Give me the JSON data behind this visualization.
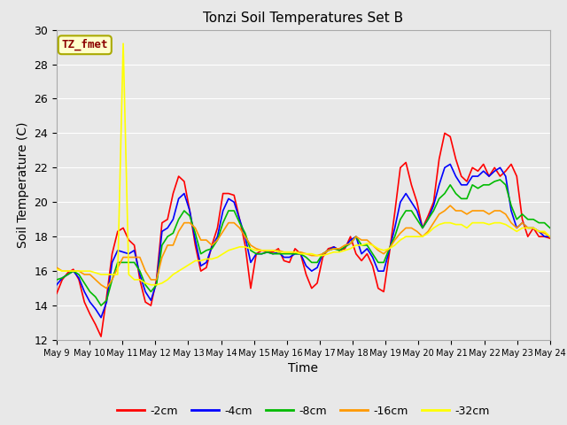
{
  "title": "Tonzi Soil Temperatures Set B",
  "xlabel": "Time",
  "ylabel": "Soil Temperature (C)",
  "ylim": [
    12,
    30
  ],
  "yticks": [
    12,
    14,
    16,
    18,
    20,
    22,
    24,
    26,
    28,
    30
  ],
  "bg_color": "#e8e8e8",
  "grid_color": "#ffffff",
  "legend_label": "TZ_fmet",
  "legend_box_color": "#ffffcc",
  "legend_text_color": "#8b0000",
  "series": [
    {
      "label": "-2cm",
      "color": "#ff0000"
    },
    {
      "label": "-4cm",
      "color": "#0000ff"
    },
    {
      "label": "-8cm",
      "color": "#00bb00"
    },
    {
      "label": "-16cm",
      "color": "#ff9900"
    },
    {
      "label": "-32cm",
      "color": "#ffff00"
    }
  ],
  "xtick_labels": [
    "May 9",
    "May 10",
    "May 11",
    "May 12",
    "May 13",
    "May 14",
    "May 15",
    "May 16",
    "May 17",
    "May 18",
    "May 19",
    "May 20",
    "May 21",
    "May 22",
    "May 23",
    "May 24"
  ],
  "data_2cm": [
    14.7,
    15.5,
    15.9,
    16.1,
    15.5,
    14.2,
    13.5,
    12.9,
    12.2,
    14.5,
    17.0,
    18.3,
    18.5,
    17.8,
    17.5,
    15.5,
    14.2,
    14.0,
    15.5,
    18.8,
    19.0,
    20.5,
    21.5,
    21.2,
    19.5,
    17.5,
    16.0,
    16.2,
    17.5,
    18.5,
    20.5,
    20.5,
    20.4,
    19.0,
    17.5,
    15.0,
    17.0,
    17.2,
    17.1,
    17.1,
    17.3,
    16.6,
    16.5,
    17.3,
    17.0,
    15.8,
    15.0,
    15.3,
    16.8,
    17.3,
    17.4,
    17.2,
    17.3,
    18.0,
    17.0,
    16.6,
    17.0,
    16.3,
    15.0,
    14.8,
    17.0,
    19.4,
    22.0,
    22.3,
    21.0,
    20.0,
    18.5,
    19.2,
    20.0,
    22.5,
    24.0,
    23.8,
    22.5,
    21.5,
    21.2,
    22.0,
    21.8,
    22.2,
    21.5,
    22.0,
    21.5,
    21.8,
    22.2,
    21.5,
    19.0,
    18.0,
    18.5,
    18.0,
    18.0,
    17.9
  ],
  "data_4cm": [
    15.2,
    15.6,
    15.8,
    16.0,
    15.6,
    14.8,
    14.2,
    13.8,
    13.3,
    14.2,
    16.5,
    17.2,
    17.1,
    17.0,
    17.2,
    15.8,
    14.8,
    14.3,
    15.3,
    18.3,
    18.5,
    19.0,
    20.2,
    20.5,
    19.5,
    17.8,
    16.3,
    16.5,
    17.4,
    18.0,
    19.5,
    20.2,
    20.0,
    19.0,
    18.0,
    16.5,
    17.0,
    17.0,
    17.1,
    17.0,
    17.1,
    16.8,
    16.8,
    17.0,
    17.0,
    16.3,
    16.0,
    16.2,
    17.0,
    17.2,
    17.4,
    17.2,
    17.4,
    17.8,
    18.0,
    17.0,
    17.3,
    16.8,
    16.0,
    16.0,
    17.2,
    18.5,
    20.0,
    20.5,
    20.0,
    19.5,
    18.5,
    19.0,
    19.8,
    21.0,
    22.0,
    22.2,
    21.5,
    21.0,
    21.0,
    21.5,
    21.5,
    21.8,
    21.5,
    21.8,
    22.0,
    21.5,
    19.5,
    18.5,
    18.8,
    18.5,
    18.5,
    18.3,
    18.0,
    18.0
  ],
  "data_8cm": [
    15.5,
    15.6,
    15.8,
    16.0,
    15.8,
    15.3,
    14.8,
    14.5,
    14.0,
    14.3,
    15.5,
    16.5,
    16.5,
    16.5,
    16.5,
    16.0,
    15.2,
    14.8,
    15.2,
    17.5,
    18.0,
    18.2,
    19.0,
    19.5,
    19.2,
    18.2,
    17.0,
    17.2,
    17.3,
    17.8,
    18.8,
    19.5,
    19.5,
    18.8,
    18.2,
    17.2,
    17.0,
    17.0,
    17.1,
    17.0,
    17.0,
    17.0,
    17.0,
    17.0,
    17.0,
    16.8,
    16.5,
    16.5,
    17.0,
    17.2,
    17.3,
    17.2,
    17.4,
    17.6,
    18.0,
    17.5,
    17.5,
    17.0,
    16.5,
    16.5,
    17.3,
    18.0,
    19.0,
    19.5,
    19.5,
    19.0,
    18.5,
    19.0,
    19.5,
    20.2,
    20.5,
    21.0,
    20.5,
    20.2,
    20.2,
    21.0,
    20.8,
    21.0,
    21.0,
    21.2,
    21.3,
    21.0,
    19.8,
    19.0,
    19.3,
    19.0,
    19.0,
    18.8,
    18.8,
    18.5
  ],
  "data_16cm": [
    16.2,
    16.0,
    16.0,
    16.0,
    16.0,
    15.8,
    15.8,
    15.5,
    15.2,
    15.0,
    15.5,
    16.2,
    16.8,
    16.8,
    16.8,
    16.8,
    16.0,
    15.5,
    15.5,
    16.8,
    17.5,
    17.5,
    18.3,
    18.8,
    18.8,
    18.5,
    17.8,
    17.8,
    17.5,
    17.8,
    18.3,
    18.8,
    18.8,
    18.5,
    18.0,
    17.5,
    17.3,
    17.2,
    17.2,
    17.2,
    17.2,
    17.1,
    17.1,
    17.1,
    17.1,
    17.0,
    16.9,
    16.9,
    17.0,
    17.2,
    17.3,
    17.3,
    17.5,
    17.6,
    18.0,
    17.8,
    17.8,
    17.5,
    17.2,
    17.0,
    17.3,
    17.8,
    18.2,
    18.5,
    18.5,
    18.3,
    18.0,
    18.3,
    18.8,
    19.3,
    19.5,
    19.8,
    19.5,
    19.5,
    19.3,
    19.5,
    19.5,
    19.5,
    19.3,
    19.5,
    19.5,
    19.3,
    18.8,
    18.5,
    18.8,
    18.5,
    18.5,
    18.3,
    18.2,
    18.0
  ],
  "data_32cm": [
    16.1,
    16.0,
    16.0,
    16.0,
    16.0,
    16.0,
    16.0,
    15.9,
    15.8,
    15.8,
    15.8,
    15.8,
    29.2,
    15.8,
    15.5,
    15.5,
    15.3,
    15.2,
    15.2,
    15.3,
    15.5,
    15.8,
    16.0,
    16.2,
    16.4,
    16.6,
    16.6,
    16.7,
    16.7,
    16.8,
    17.0,
    17.2,
    17.3,
    17.4,
    17.4,
    17.3,
    17.2,
    17.2,
    17.2,
    17.2,
    17.1,
    17.1,
    17.1,
    17.1,
    17.0,
    17.0,
    17.0,
    16.9,
    16.9,
    17.0,
    17.1,
    17.1,
    17.2,
    17.3,
    17.5,
    17.5,
    17.6,
    17.5,
    17.3,
    17.2,
    17.3,
    17.5,
    17.8,
    18.0,
    18.0,
    18.0,
    18.0,
    18.2,
    18.5,
    18.7,
    18.8,
    18.8,
    18.7,
    18.7,
    18.5,
    18.8,
    18.8,
    18.8,
    18.7,
    18.8,
    18.8,
    18.7,
    18.5,
    18.3,
    18.5,
    18.5,
    18.5,
    18.3,
    18.3,
    18.0
  ]
}
